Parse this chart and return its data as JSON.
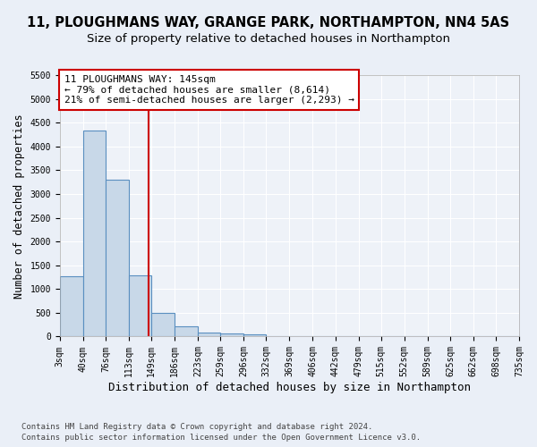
{
  "title": "11, PLOUGHMANS WAY, GRANGE PARK, NORTHAMPTON, NN4 5AS",
  "subtitle": "Size of property relative to detached houses in Northampton",
  "xlabel": "Distribution of detached houses by size in Northampton",
  "ylabel": "Number of detached properties",
  "bin_edges": [
    3,
    40,
    76,
    113,
    149,
    186,
    223,
    259,
    296,
    332,
    369,
    406,
    442,
    479,
    515,
    552,
    589,
    625,
    662,
    698,
    735
  ],
  "bar_heights": [
    1270,
    4330,
    3300,
    1290,
    490,
    220,
    90,
    60,
    50,
    0,
    0,
    0,
    0,
    0,
    0,
    0,
    0,
    0,
    0,
    0
  ],
  "bar_color": "#c8d8e8",
  "bar_edgecolor": "#5a8fc0",
  "bar_linewidth": 0.8,
  "vline_x": 145,
  "vline_color": "#cc0000",
  "vline_linewidth": 1.5,
  "ylim": [
    0,
    5500
  ],
  "annotation_line1": "11 PLOUGHMANS WAY: 145sqm",
  "annotation_line2": "← 79% of detached houses are smaller (8,614)",
  "annotation_line3": "21% of semi-detached houses are larger (2,293) →",
  "annotation_box_color": "#cc0000",
  "footnote1": "Contains HM Land Registry data © Crown copyright and database right 2024.",
  "footnote2": "Contains public sector information licensed under the Open Government Licence v3.0.",
  "bg_color": "#eaeff7",
  "plot_bg_color": "#eef2f8",
  "grid_color": "#ffffff",
  "title_fontsize": 10.5,
  "subtitle_fontsize": 9.5,
  "xlabel_fontsize": 9,
  "ylabel_fontsize": 8.5,
  "tick_fontsize": 7,
  "annotation_fontsize": 8,
  "footnote_fontsize": 6.5
}
